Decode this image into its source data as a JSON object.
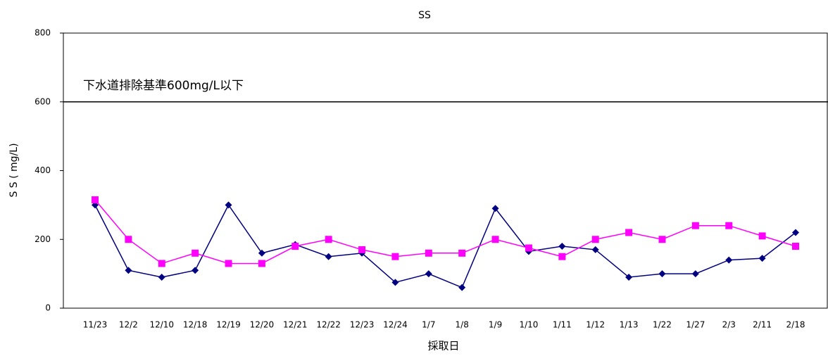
{
  "chart_data": {
    "type": "line",
    "title": "SS",
    "x_label": "採取日",
    "y_label": "S S ( mg/L)",
    "annotation": "下水道排除基準600mg/L以下",
    "reference_line": 600,
    "categories": [
      "11/23",
      "12/2",
      "12/10",
      "12/18",
      "12/19",
      "12/20",
      "12/21",
      "12/22",
      "12/23",
      "12/24",
      "1/7",
      "1/8",
      "1/9",
      "1/10",
      "1/11",
      "1/12",
      "1/13",
      "1/22",
      "1/27",
      "2/3",
      "2/11",
      "2/18"
    ],
    "series": [
      {
        "color": "#000080",
        "marker": "diamond",
        "values": [
          300,
          110,
          90,
          110,
          300,
          160,
          185,
          150,
          160,
          75,
          100,
          60,
          290,
          165,
          180,
          170,
          90,
          100,
          100,
          140,
          145,
          220
        ]
      },
      {
        "color": "#ff00ff",
        "marker": "square",
        "values": [
          315,
          200,
          130,
          160,
          130,
          130,
          180,
          200,
          170,
          150,
          160,
          160,
          200,
          175,
          150,
          200,
          220,
          200,
          240,
          240,
          210,
          180
        ]
      }
    ],
    "ylim": [
      0,
      800
    ],
    "yticks": [
      0,
      200,
      400,
      600,
      800
    ],
    "grid": false
  }
}
